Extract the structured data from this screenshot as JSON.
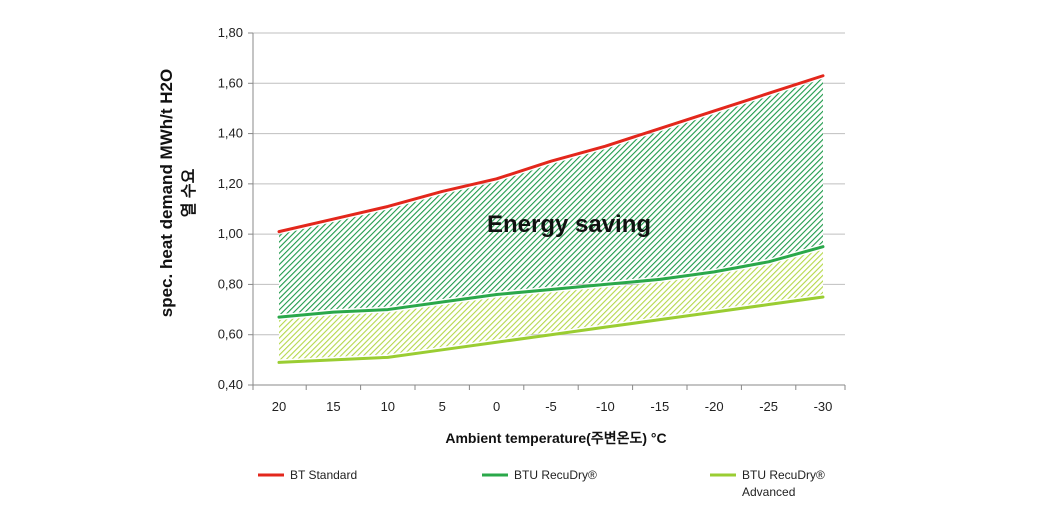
{
  "chart_data": {
    "type": "line",
    "x": [
      20,
      15,
      10,
      5,
      0,
      -5,
      -10,
      -15,
      -20,
      -25,
      -30
    ],
    "x_tick_labels": [
      "20",
      "15",
      "10",
      "5",
      "0",
      "-5",
      "-10",
      "-15",
      "-20",
      "-25",
      "-30"
    ],
    "y_tick_labels": [
      "0,40",
      "0,60",
      "0,80",
      "1,00",
      "1,20",
      "1,40",
      "1,60",
      "1,80"
    ],
    "ylim": [
      0.4,
      1.8
    ],
    "y_ticks": [
      0.4,
      0.6,
      0.8,
      1.0,
      1.2,
      1.4,
      1.6,
      1.8
    ],
    "grid": "horizontal",
    "xlabel": "Ambient temperature(주변온도) °C",
    "ylabel": "spec. heat demand MWh/t H2O",
    "ylabel_secondary": "열 수요",
    "annotation": "Energy saving",
    "legend_position": "bottom",
    "series": [
      {
        "name": "BT Standard",
        "color": "#e3271c",
        "values": [
          1.01,
          1.06,
          1.11,
          1.17,
          1.22,
          1.29,
          1.35,
          1.42,
          1.49,
          1.56,
          1.63
        ]
      },
      {
        "name": "BTU RecuDry®",
        "color": "#2aa84a",
        "values": [
          0.67,
          0.69,
          0.7,
          0.73,
          0.76,
          0.78,
          0.8,
          0.82,
          0.85,
          0.89,
          0.95
        ]
      },
      {
        "name": "BTU RecuDry® Advanced",
        "name_line2": "Advanced",
        "color": "#9acd32",
        "values": [
          0.49,
          0.5,
          0.51,
          0.54,
          0.57,
          0.6,
          0.63,
          0.66,
          0.69,
          0.72,
          0.75
        ]
      }
    ],
    "legend": {
      "item1": "BT Standard",
      "item2": "BTU RecuDry®",
      "item3_line1": "BTU RecuDry®",
      "item3_line2": "Advanced"
    }
  }
}
